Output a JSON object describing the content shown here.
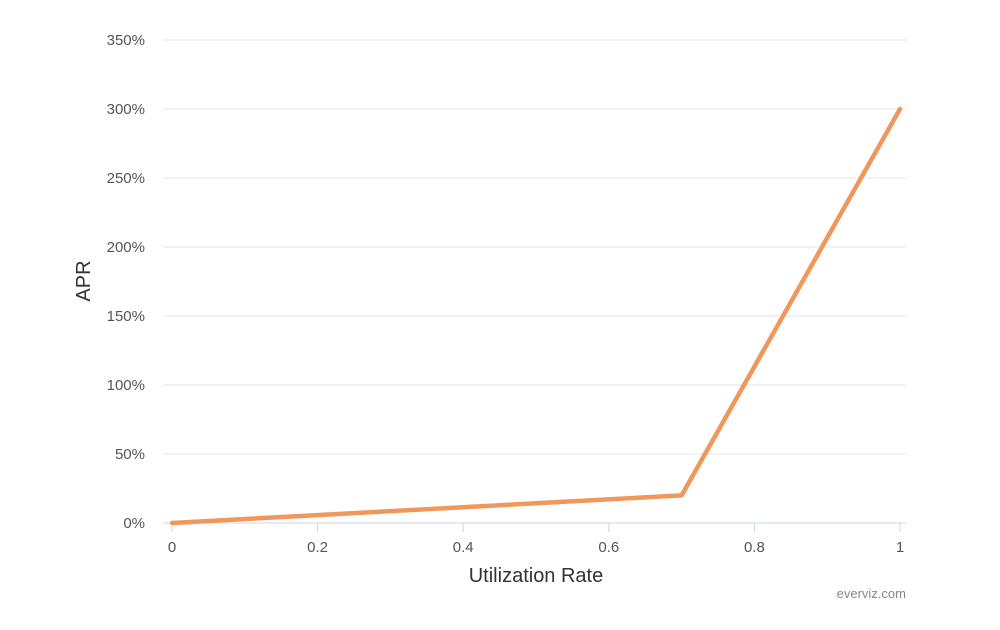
{
  "chart_data": {
    "type": "line",
    "xlabel": "Utilization Rate",
    "ylabel": "APR",
    "xlim": [
      0,
      1
    ],
    "ylim": [
      0,
      350
    ],
    "x_ticks": [
      0,
      0.2,
      0.4,
      0.6,
      0.8,
      1
    ],
    "x_tick_labels": [
      "0",
      "0.2",
      "0.4",
      "0.6",
      "0.8",
      "1"
    ],
    "y_ticks": [
      0,
      50,
      100,
      150,
      200,
      250,
      300,
      350
    ],
    "y_tick_labels": [
      "0%",
      "50%",
      "100%",
      "150%",
      "200%",
      "250%",
      "300%",
      "350%"
    ],
    "grid": true,
    "legend": "none",
    "series": [
      {
        "color": "#F0975B",
        "x": [
          0,
          0.7,
          1
        ],
        "y": [
          0,
          20,
          300
        ]
      }
    ]
  },
  "credit": "everviz.com",
  "colors": {
    "grid": "#e6e6e6",
    "axis": "#ccd6eb",
    "line": "#F0975B"
  }
}
